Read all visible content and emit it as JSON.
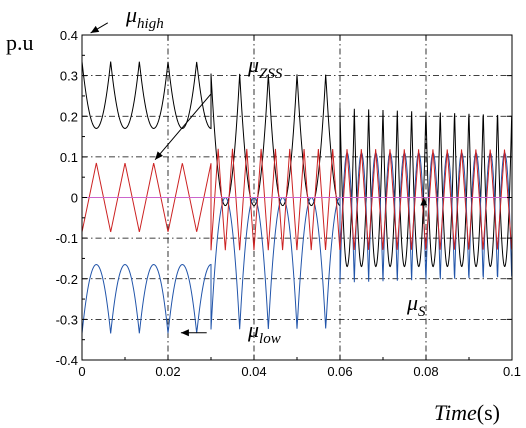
{
  "chart_data": {
    "type": "line",
    "y_unit_label": "p.u",
    "x_axis_title": {
      "word": "Time",
      "unit": "(s)"
    },
    "xlim": [
      0,
      0.1
    ],
    "ylim": [
      -0.4,
      0.4
    ],
    "x_ticks": [
      0,
      0.02,
      0.04,
      0.06,
      0.08,
      0.1
    ],
    "x_tick_labels": [
      "0",
      "0.02",
      "0.04",
      "0.06",
      "0.08",
      "0.1"
    ],
    "y_ticks": [
      -0.4,
      -0.3,
      -0.2,
      -0.1,
      0,
      0.1,
      0.2,
      0.3,
      0.4
    ],
    "y_tick_labels": [
      "-0.4",
      "-0.3",
      "-0.2",
      "-0.1",
      "0",
      "0.1",
      "0.2",
      "0.3",
      "0.4"
    ],
    "grid": true,
    "grid_style": "dash-dot",
    "series": [
      {
        "key": "mu_high",
        "color": "#000000",
        "description_symbol": "μ high",
        "segments": [
          {
            "x_start": 0,
            "x_end": 0.03,
            "period": 0.00667,
            "min": 0.17,
            "max": 0.335,
            "shape": "cusp-up"
          },
          {
            "x_start": 0.03,
            "x_end": 0.06,
            "period": 0.00667,
            "min": -0.02,
            "max": 0.305,
            "shape": "cusp-up"
          },
          {
            "x_start": 0.06,
            "x_end": 0.1,
            "period": 0.00333,
            "min": -0.17,
            "max": 0.22,
            "shape": "cusp-up"
          }
        ]
      },
      {
        "key": "mu_zss",
        "color": "#cc2222",
        "segments": [
          {
            "x_start": 0,
            "x_end": 0.03,
            "period": 0.00667,
            "min": -0.085,
            "max": 0.085,
            "shape": "triangle"
          },
          {
            "x_start": 0.03,
            "x_end": 0.1,
            "period": 0.00333,
            "min": -0.13,
            "max": 0.12,
            "shape": "triangle"
          }
        ]
      },
      {
        "key": "mu_low",
        "color": "#2255aa",
        "segments": [
          {
            "x_start": 0,
            "x_end": 0.03,
            "period": 0.00667,
            "min": -0.335,
            "max": -0.165,
            "shape": "cusp-down"
          },
          {
            "x_start": 0.03,
            "x_end": 0.06,
            "period": 0.00667,
            "min": -0.325,
            "max": 0.0,
            "shape": "cusp-down"
          },
          {
            "x_start": 0.06,
            "x_end": 0.1,
            "period": 0.00333,
            "min": -0.21,
            "max": 0.11,
            "shape": "cusp-down"
          }
        ]
      },
      {
        "key": "mu_s",
        "color": "#cc66cc",
        "segments": [
          {
            "x_start": 0,
            "x_end": 0.1,
            "constant": 0
          }
        ]
      }
    ],
    "annotations": [
      {
        "key": "ann-mu-high",
        "main": "μ",
        "sub": "high",
        "arrow_from": [
          0.006,
          0.43
        ],
        "arrow_to": [
          0.002,
          0.405
        ]
      },
      {
        "key": "ann-mu-zss",
        "main": "μ",
        "sub": "ZSS",
        "arrow_from": [
          0.03,
          0.255
        ],
        "arrow_to": [
          0.017,
          0.093
        ]
      },
      {
        "key": "ann-mu-s",
        "main": "μ",
        "sub": "S",
        "arrow_from": [
          0.0795,
          -0.065
        ],
        "arrow_to": [
          0.0795,
          0.0
        ]
      },
      {
        "key": "ann-mu-low",
        "main": "μ",
        "sub": "low",
        "arrow_from": [
          0.029,
          -0.333
        ],
        "arrow_to": [
          0.023,
          -0.333
        ]
      }
    ]
  }
}
